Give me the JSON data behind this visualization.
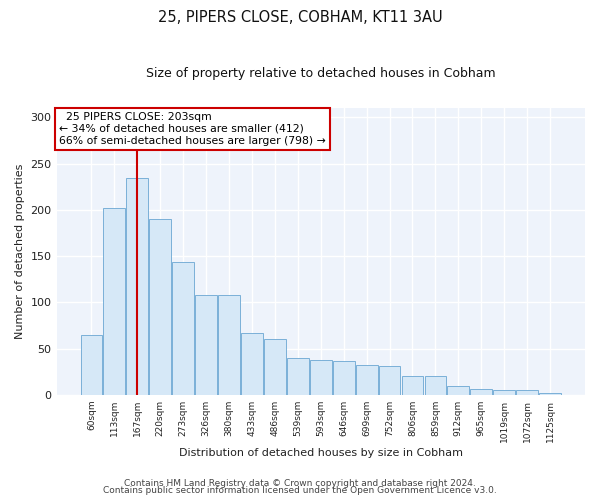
{
  "title1": "25, PIPERS CLOSE, COBHAM, KT11 3AU",
  "title2": "Size of property relative to detached houses in Cobham",
  "xlabel": "Distribution of detached houses by size in Cobham",
  "ylabel": "Number of detached properties",
  "categories": [
    "60sqm",
    "113sqm",
    "167sqm",
    "220sqm",
    "273sqm",
    "326sqm",
    "380sqm",
    "433sqm",
    "486sqm",
    "539sqm",
    "593sqm",
    "646sqm",
    "699sqm",
    "752sqm",
    "806sqm",
    "859sqm",
    "912sqm",
    "965sqm",
    "1019sqm",
    "1072sqm",
    "1125sqm"
  ],
  "values": [
    65,
    202,
    234,
    190,
    144,
    108,
    108,
    67,
    60,
    40,
    38,
    37,
    32,
    31,
    20,
    20,
    10,
    6,
    5,
    5,
    2
  ],
  "bar_color": "#d6e8f7",
  "bar_edge_color": "#7ab0d8",
  "vline_x": 2,
  "vline_color": "#cc0000",
  "annotation_text": "  25 PIPERS CLOSE: 203sqm\n← 34% of detached houses are smaller (412)\n66% of semi-detached houses are larger (798) →",
  "annotation_box_color": "white",
  "annotation_box_edge": "#cc0000",
  "ylim": [
    0,
    310
  ],
  "yticks": [
    0,
    50,
    100,
    150,
    200,
    250,
    300
  ],
  "footer1": "Contains HM Land Registry data © Crown copyright and database right 2024.",
  "footer2": "Contains public sector information licensed under the Open Government Licence v3.0.",
  "background_color": "#ffffff",
  "plot_background": "#eef3fb"
}
